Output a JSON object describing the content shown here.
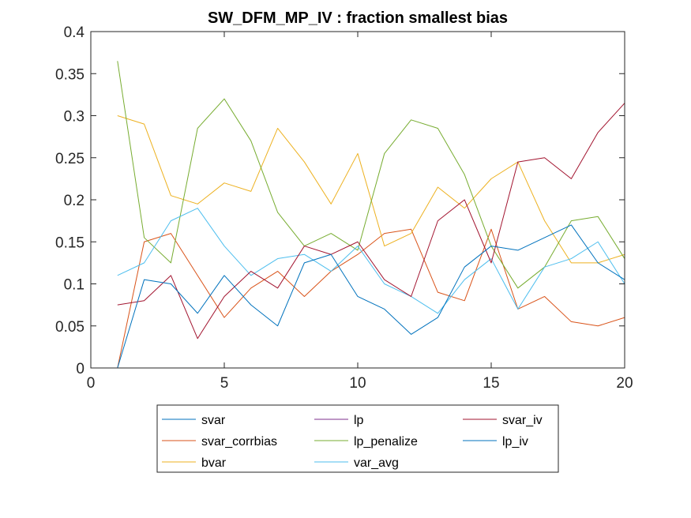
{
  "chart_data": {
    "type": "line",
    "title": "SW_DFM_MP_IV : fraction smallest bias",
    "xlabel": "",
    "ylabel": "",
    "xlim": [
      0,
      20
    ],
    "ylim": [
      0,
      0.4
    ],
    "xticks": [
      0,
      5,
      10,
      15,
      20
    ],
    "xtick_labels": [
      "0",
      "5",
      "10",
      "15",
      "20"
    ],
    "yticks": [
      0,
      0.05,
      0.1,
      0.15,
      0.2,
      0.25,
      0.3,
      0.35,
      0.4
    ],
    "ytick_labels": [
      "0",
      "0.05",
      "0.1",
      "0.15",
      "0.2",
      "0.25",
      "0.3",
      "0.35",
      "0.4"
    ],
    "grid": false,
    "legend_position": "bottom-outside",
    "legend_columns": 3,
    "x": [
      1,
      2,
      3,
      4,
      5,
      6,
      7,
      8,
      9,
      10,
      11,
      12,
      13,
      14,
      15,
      16,
      17,
      18,
      19,
      20
    ],
    "series": [
      {
        "name": "svar",
        "color": "#0072BD",
        "values": [
          0,
          0,
          0,
          0,
          0,
          0,
          0,
          0,
          0,
          0,
          0,
          0,
          0,
          0,
          0,
          0,
          0,
          0,
          0,
          0
        ]
      },
      {
        "name": "svar_corrbias",
        "color": "#D95319",
        "values": [
          0,
          0.15,
          0.16,
          0.11,
          0.06,
          0.095,
          0.115,
          0.085,
          0.115,
          0.135,
          0.16,
          0.165,
          0.09,
          0.08,
          0.165,
          0.07,
          0.085,
          0.055,
          0.05,
          0.06
        ]
      },
      {
        "name": "bvar",
        "color": "#EDB120",
        "values": [
          0.3,
          0.29,
          0.205,
          0.195,
          0.22,
          0.21,
          0.285,
          0.245,
          0.195,
          0.255,
          0.145,
          0.16,
          0.215,
          0.19,
          0.225,
          0.245,
          0.175,
          0.125,
          0.125,
          0.135
        ]
      },
      {
        "name": "lp",
        "color": "#7E2F8E",
        "values": [
          0,
          0,
          0,
          0,
          0,
          0,
          0,
          0,
          0,
          0,
          0,
          0,
          0,
          0,
          0,
          0,
          0,
          0,
          0,
          0
        ]
      },
      {
        "name": "lp_penalize",
        "color": "#77AC30",
        "values": [
          0.365,
          0.155,
          0.125,
          0.285,
          0.32,
          0.27,
          0.185,
          0.145,
          0.16,
          0.14,
          0.255,
          0.295,
          0.285,
          0.23,
          0.145,
          0.095,
          0.12,
          0.175,
          0.18,
          0.13
        ]
      },
      {
        "name": "var_avg",
        "color": "#4DBEEE",
        "values": [
          0.11,
          0.125,
          0.175,
          0.19,
          0.145,
          0.11,
          0.13,
          0.135,
          0.115,
          0.145,
          0.1,
          0.085,
          0.065,
          0.105,
          0.13,
          0.07,
          0.12,
          0.13,
          0.15,
          0.1
        ]
      },
      {
        "name": "svar_iv",
        "color": "#A2142F",
        "values": [
          0.075,
          0.08,
          0.11,
          0.035,
          0.085,
          0.115,
          0.095,
          0.145,
          0.135,
          0.15,
          0.105,
          0.085,
          0.175,
          0.2,
          0.125,
          0.245,
          0.25,
          0.225,
          0.28,
          0.315
        ]
      },
      {
        "name": "lp_iv",
        "color": "#0072BD",
        "values": [
          0,
          0.105,
          0.1,
          0.065,
          0.11,
          0.075,
          0.05,
          0.125,
          0.135,
          0.085,
          0.07,
          0.04,
          0.06,
          0.12,
          0.145,
          0.14,
          0.155,
          0.17,
          0.125,
          0.105
        ]
      }
    ],
    "legend_order": [
      "svar",
      "lp",
      "svar_iv",
      "svar_corrbias",
      "lp_penalize",
      "lp_iv",
      "bvar",
      "var_avg"
    ]
  }
}
